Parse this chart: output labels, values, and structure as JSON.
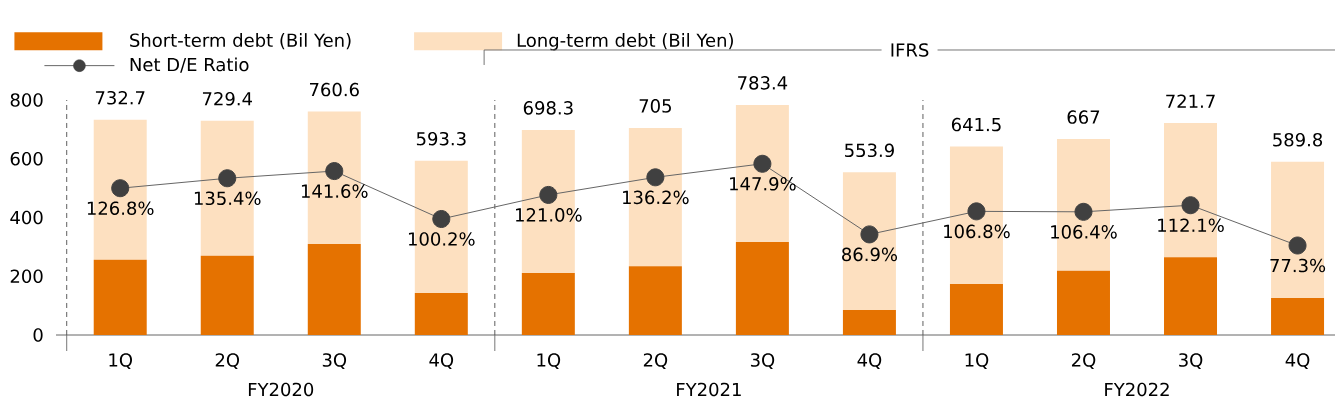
{
  "chart_data": {
    "type": "bar",
    "stacked": true,
    "categories": [
      "1Q",
      "2Q",
      "3Q",
      "4Q",
      "1Q",
      "2Q",
      "3Q",
      "4Q",
      "1Q",
      "2Q",
      "3Q",
      "4Q"
    ],
    "series": [
      {
        "name": "Short-term debt (Bil Yen)",
        "color": "#e57200",
        "values": [
          256,
          270,
          310,
          143,
          211,
          234,
          317,
          85,
          174,
          219,
          265,
          126
        ]
      },
      {
        "name": "Long-term debt (Bil Yen)",
        "color": "#fde0c0",
        "values": [
          476.7,
          459.4,
          450.6,
          450.3,
          487.3,
          471,
          466.4,
          468.9,
          467.5,
          448,
          456.7,
          463.8
        ]
      },
      {
        "name": "Net D/E Ratio",
        "type": "line",
        "axis": "y2",
        "color": "#404040",
        "marker": "circle",
        "values": [
          126.8,
          135.4,
          141.6,
          100.2,
          121.0,
          136.2,
          147.9,
          86.9,
          106.8,
          106.4,
          112.1,
          77.3
        ],
        "value_labels": [
          "126.8%",
          "135.4%",
          "141.6%",
          "100.2%",
          "121.0%",
          "136.2%",
          "147.9%",
          "86.9%",
          "106.8%",
          "106.4%",
          "112.1%",
          "77.3%"
        ]
      }
    ],
    "totals": [
      "732.7",
      "729.4",
      "760.6",
      "593.3",
      "698.3",
      "705",
      "783.4",
      "553.9",
      "641.5",
      "667",
      "721.7",
      "589.8"
    ],
    "ylim": [
      0,
      800
    ],
    "yticks": [
      0,
      200,
      400,
      600,
      800
    ],
    "y2lim": [
      0,
      203
    ],
    "legend": "top left",
    "annotations": [
      "FY2020",
      "FY2021",
      "FY2022",
      "IFRS"
    ]
  }
}
